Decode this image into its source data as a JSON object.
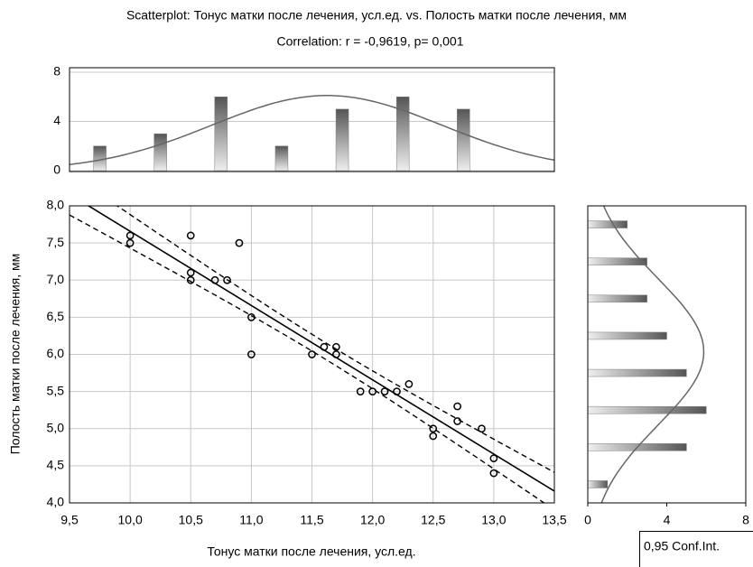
{
  "chart_data": [
    {
      "type": "scatter",
      "title": "Scatterplot: Тонус матки после лечения, усл.ед. vs. Полость матки после лечения, мм",
      "subtitle": "Correlation: r = -0,9619, p= 0,001",
      "xlabel": "Тонус матки после лечения, усл.ед.",
      "ylabel": "Полость матки после лечения, мм",
      "legend_label": "0,95 Conf.Int.",
      "color": "#000000",
      "grid": true,
      "x": [
        10.0,
        10.0,
        10.5,
        10.5,
        10.5,
        10.7,
        10.8,
        10.9,
        11.0,
        11.0,
        11.5,
        11.6,
        11.7,
        11.7,
        11.9,
        12.0,
        12.1,
        12.2,
        12.3,
        12.5,
        12.5,
        12.7,
        12.7,
        12.9,
        13.0,
        13.0
      ],
      "values": [
        7.6,
        7.5,
        7.6,
        7.1,
        7.0,
        7.0,
        7.0,
        7.5,
        6.5,
        6.0,
        6.0,
        6.1,
        6.1,
        6.0,
        5.5,
        5.5,
        5.5,
        5.5,
        5.6,
        5.0,
        4.9,
        5.3,
        5.1,
        5.0,
        4.6,
        4.4
      ],
      "xlim": [
        9.5,
        13.5
      ],
      "xticks": [
        {
          "value": 9.5,
          "label": "9,5"
        },
        {
          "value": 10,
          "label": "10,0"
        },
        {
          "value": 10.5,
          "label": "10,5"
        },
        {
          "value": 11,
          "label": "11,0"
        },
        {
          "value": 11.5,
          "label": "11,5"
        },
        {
          "value": 12,
          "label": "12,0"
        },
        {
          "value": 12.5,
          "label": "12,5"
        },
        {
          "value": 13,
          "label": "13,0"
        },
        {
          "value": 13.5,
          "label": "13,5"
        }
      ],
      "ylim": [
        4,
        8
      ],
      "yticks": [
        {
          "value": 4,
          "label": "4,0"
        },
        {
          "value": 4.5,
          "label": "4,5"
        },
        {
          "value": 5,
          "label": "5,0"
        },
        {
          "value": 5.5,
          "label": "5,5"
        },
        {
          "value": 6,
          "label": "6,0"
        },
        {
          "value": 6.5,
          "label": "6,5"
        },
        {
          "value": 7,
          "label": "7,0"
        },
        {
          "value": 7.5,
          "label": "7,5"
        },
        {
          "value": 8,
          "label": "8,0"
        }
      ]
    },
    {
      "type": "histogram",
      "orientation": "vertical",
      "color": "#808080",
      "grid": true,
      "bins": [
        9.5,
        10.0,
        10.5,
        11.0,
        11.5,
        12.0,
        12.5,
        13.0
      ],
      "values": [
        2,
        3,
        6,
        2,
        5,
        6,
        5
      ],
      "xlim": [
        9.5,
        13.5
      ],
      "ylim": [
        0,
        8
      ],
      "yticks": [
        0,
        4,
        8
      ]
    },
    {
      "type": "histogram",
      "orientation": "horizontal",
      "color": "#808080",
      "grid": false,
      "bins": [
        4.0,
        4.5,
        5.0,
        5.5,
        6.0,
        6.5,
        7.0,
        7.5,
        8.0
      ],
      "values": [
        1,
        5,
        6,
        5,
        4,
        3,
        3,
        2
      ],
      "ylim": [
        4,
        8
      ],
      "xlim": [
        0,
        8
      ],
      "xticks": [
        0,
        4,
        8
      ]
    }
  ]
}
